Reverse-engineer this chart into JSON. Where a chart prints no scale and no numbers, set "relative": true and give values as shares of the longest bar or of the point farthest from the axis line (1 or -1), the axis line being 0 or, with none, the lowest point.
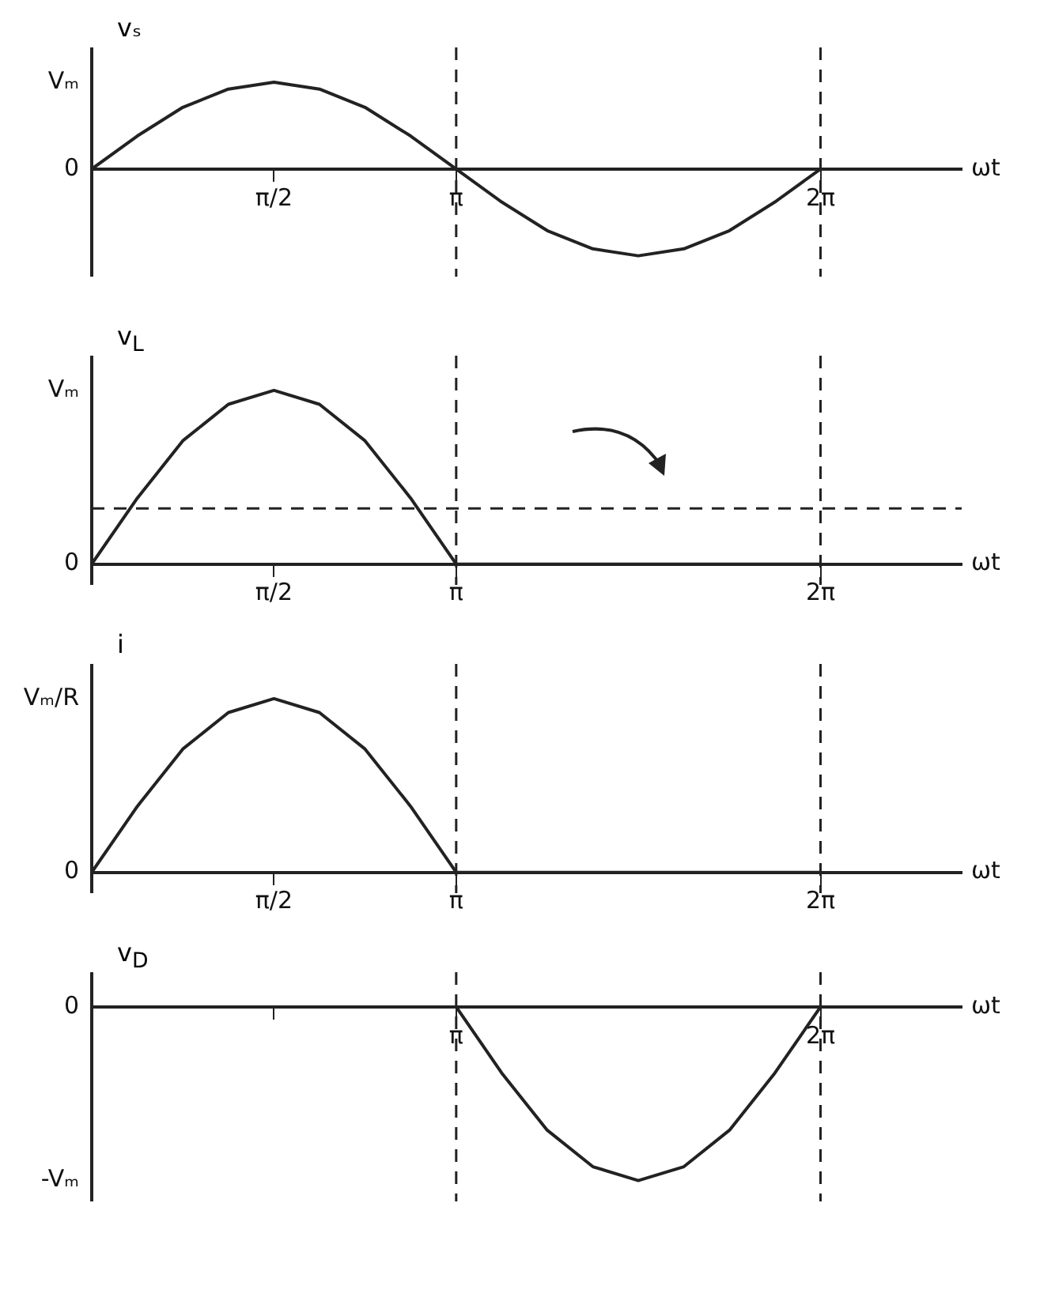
{
  "chart_data": [
    {
      "type": "line",
      "relative": true,
      "ylabel": "vₛ",
      "xlabel": "ωt",
      "color": "#222222",
      "marker": "none",
      "line_style": "solid",
      "x": [
        0,
        0.393,
        0.785,
        1.178,
        1.571,
        1.963,
        2.356,
        2.749,
        3.142,
        3.534,
        3.927,
        4.32,
        4.712,
        5.105,
        5.498,
        5.89,
        6.283
      ],
      "values": [
        0,
        0.38,
        0.71,
        0.92,
        1,
        0.92,
        0.71,
        0.38,
        0,
        -0.38,
        -0.71,
        -0.92,
        -1,
        -0.92,
        -0.71,
        -0.38,
        0
      ],
      "xlim": [
        0,
        7.5
      ],
      "xticks": [
        {
          "value": 1.571,
          "label": "π/2"
        },
        {
          "value": 3.142,
          "label": "π"
        },
        {
          "value": 6.283,
          "label": "2π"
        }
      ],
      "annotations": [
        "0",
        "Vₘ"
      ],
      "ref_lines": [
        {
          "axis": "x",
          "value": 3.142,
          "line_style": "dashed",
          "color": "#222222"
        },
        {
          "axis": "x",
          "value": 6.283,
          "line_style": "dashed",
          "color": "#222222"
        }
      ]
    },
    {
      "type": "line",
      "relative": true,
      "ylabel": "v$_{L}$",
      "xlabel": "ωt",
      "color": "#222222",
      "marker": "none",
      "line_style": "solid",
      "x": [
        0,
        0.393,
        0.785,
        1.178,
        1.571,
        1.963,
        2.356,
        2.749,
        3.142,
        3.534,
        3.927,
        4.32,
        4.712,
        5.105,
        5.498,
        5.89,
        6.283
      ],
      "values": [
        0,
        0.38,
        0.71,
        0.92,
        1,
        0.92,
        0.71,
        0.38,
        0,
        0,
        0,
        0,
        0,
        0,
        0,
        0,
        0
      ],
      "xlim": [
        0,
        7.5
      ],
      "xticks": [
        {
          "value": 1.571,
          "label": "π/2"
        },
        {
          "value": 3.142,
          "label": "π"
        },
        {
          "value": 6.283,
          "label": "2π"
        }
      ],
      "annotations": [
        "0",
        "Vₘ"
      ],
      "ref_lines": [
        {
          "axis": "y",
          "value": 0.32,
          "line_style": "dashed",
          "color": "#222222"
        },
        {
          "axis": "x",
          "value": 3.142,
          "line_style": "dashed",
          "color": "#222222"
        },
        {
          "axis": "x",
          "value": 6.283,
          "line_style": "dashed",
          "color": "#222222"
        }
      ]
    },
    {
      "type": "line",
      "relative": true,
      "ylabel": "i",
      "xlabel": "ωt",
      "color": "#222222",
      "marker": "none",
      "line_style": "solid",
      "x": [
        0,
        0.393,
        0.785,
        1.178,
        1.571,
        1.963,
        2.356,
        2.749,
        3.142,
        3.534,
        3.927,
        4.32,
        4.712,
        5.105,
        5.498,
        5.89,
        6.283
      ],
      "values": [
        0,
        0.38,
        0.71,
        0.92,
        1,
        0.92,
        0.71,
        0.38,
        0,
        0,
        0,
        0,
        0,
        0,
        0,
        0,
        0
      ],
      "xlim": [
        0,
        7.5
      ],
      "xticks": [
        {
          "value": 1.571,
          "label": "π/2"
        },
        {
          "value": 3.142,
          "label": "π"
        },
        {
          "value": 6.283,
          "label": "2π"
        }
      ],
      "annotations": [
        "0",
        "Vₘ/R"
      ],
      "ref_lines": [
        {
          "axis": "x",
          "value": 3.142,
          "line_style": "dashed",
          "color": "#222222"
        },
        {
          "axis": "x",
          "value": 6.283,
          "line_style": "dashed",
          "color": "#222222"
        }
      ]
    },
    {
      "type": "line",
      "relative": true,
      "ylabel": "v$_{D}$",
      "xlabel": "ωt",
      "color": "#222222",
      "marker": "none",
      "line_style": "solid",
      "x": [
        0,
        0.393,
        0.785,
        1.178,
        1.571,
        1.963,
        2.356,
        2.749,
        3.142,
        3.534,
        3.927,
        4.32,
        4.712,
        5.105,
        5.498,
        5.89,
        6.283
      ],
      "values": [
        0,
        0,
        0,
        0,
        0,
        0,
        0,
        0,
        0,
        -0.38,
        -0.71,
        -0.92,
        -1,
        -0.92,
        -0.71,
        -0.38,
        0
      ],
      "xlim": [
        0,
        7.5
      ],
      "xticks": [
        {
          "value": 1.571,
          "label": null
        },
        {
          "value": 3.142,
          "label": "π"
        },
        {
          "value": 6.283,
          "label": "2π"
        }
      ],
      "annotations": [
        "0",
        "-Vₘ"
      ],
      "ref_lines": [
        {
          "axis": "x",
          "value": 3.142,
          "line_style": "dashed",
          "color": "#222222"
        },
        {
          "axis": "x",
          "value": 6.283,
          "line_style": "dashed",
          "color": "#222222"
        }
      ]
    }
  ]
}
